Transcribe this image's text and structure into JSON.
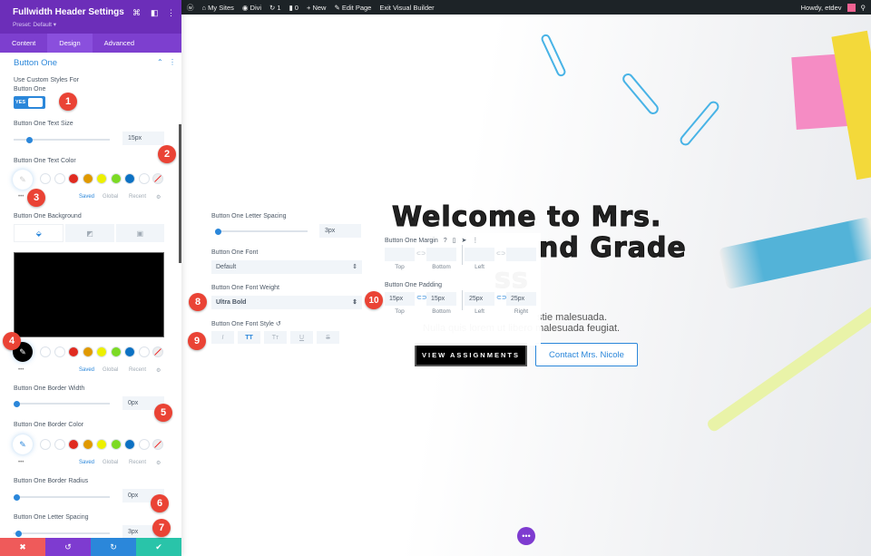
{
  "admin_bar": {
    "items": [
      "My Sites",
      "Divi",
      "1",
      "0",
      "New",
      "Edit Page",
      "Exit Visual Builder"
    ],
    "greeting": "Howdy, etdev"
  },
  "panel": {
    "title": "Fullwidth Header Settings",
    "preset": "Preset: Default ▾",
    "tabs": [
      "Content",
      "Design",
      "Advanced"
    ],
    "active_tab": "Design",
    "section": "Button One",
    "custom_styles_label_1": "Use Custom Styles For",
    "custom_styles_label_2": "Button One",
    "toggle": "YES",
    "text_size_label": "Button One Text Size",
    "text_size": "15px",
    "text_color_label": "Button One Text Color",
    "background_label": "Button One Background",
    "border_width_label": "Button One Border Width",
    "border_width": "0px",
    "border_color_label": "Button One Border Color",
    "border_radius_label": "Button One Border Radius",
    "border_radius": "0px",
    "letter_spacing_label": "Button One Letter Spacing",
    "letter_spacing": "3px",
    "palette_tabs": [
      "Saved",
      "Global",
      "Recent"
    ],
    "swatches": [
      "#ffffff",
      "#ffffff",
      "#e02b20",
      "#e09900",
      "#edf000",
      "#7cda24",
      "#0c71c3",
      "#ffffff"
    ],
    "background_color": "#000000"
  },
  "floating_left": {
    "letter_spacing_label": "Button One Letter Spacing",
    "letter_spacing": "3px",
    "font_label": "Button One Font",
    "font": "Default",
    "weight_label": "Button One Font Weight",
    "weight": "Ultra Bold",
    "style_label": "Button One Font Style",
    "styles": [
      "I",
      "TT",
      "Tт",
      "U",
      "S"
    ]
  },
  "floating_right": {
    "margin_label": "Button One Margin",
    "padding_label": "Button One Padding",
    "sides": [
      "Top",
      "Bottom",
      "Left",
      "Right"
    ],
    "padding": [
      "15px",
      "15px",
      "25px",
      "25px"
    ]
  },
  "hero": {
    "line1": "Welcome to Mrs.",
    "line2": "nd Grade",
    "line3": "ss",
    "text1": "stie malesuada.",
    "text2": "Nulla quis lorem ut libero malesuada feugiat.",
    "button1": "VIEW ASSIGNMENTS",
    "button2": "Contact Mrs. Nicole"
  },
  "badges": [
    "1",
    "2",
    "3",
    "4",
    "5",
    "6",
    "7",
    "8",
    "9",
    "10"
  ],
  "colors": {
    "purple": "#6c2eb9",
    "accent": "#2b87da",
    "cancel": "#ef5a5a",
    "undo": "#7e3bd0",
    "redo": "#2b87da",
    "save": "#29c4a9"
  }
}
